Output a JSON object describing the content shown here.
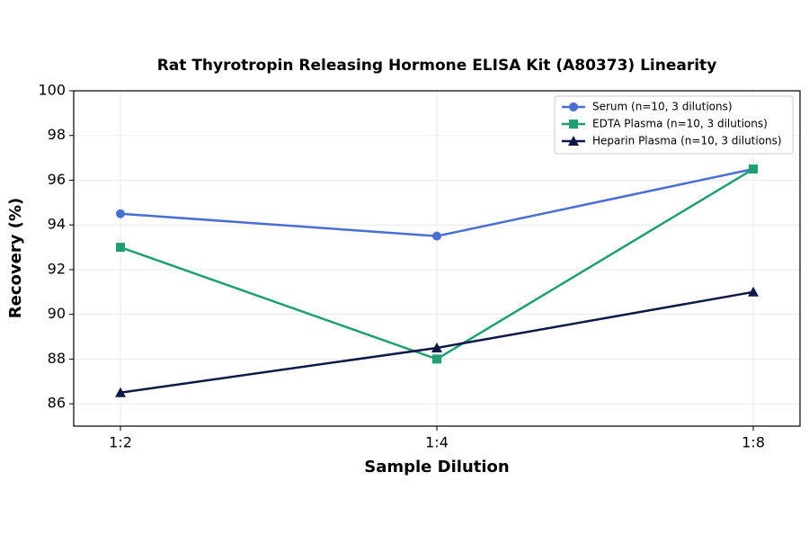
{
  "chart_data": {
    "type": "line",
    "title": "Rat Thyrotropin Releasing Hormone ELISA Kit (A80373) Linearity",
    "x_label": "Sample Dilution",
    "y_label": "Recovery (%)",
    "categories": [
      "1:2",
      "1:4",
      "1:8"
    ],
    "series": [
      {
        "name": "Serum (n=10, 3 dilutions)",
        "color": "#4a6fd0",
        "marker": "circle",
        "values": [
          94.5,
          93.5,
          96.5
        ]
      },
      {
        "name": "EDTA Plasma (n=10, 3 dilutions)",
        "color": "#1f9e74",
        "marker": "square",
        "values": [
          93,
          88,
          96.5
        ]
      },
      {
        "name": "Heparin Plasma (n=10, 3 dilutions)",
        "color": "#0e1a45",
        "marker": "triangle",
        "values": [
          86.5,
          88.5,
          91
        ]
      }
    ],
    "ylim": [
      85,
      100
    ],
    "yticks": [
      86,
      88,
      90,
      92,
      94,
      96,
      98,
      100
    ],
    "grid": true,
    "legend": "upper right"
  }
}
